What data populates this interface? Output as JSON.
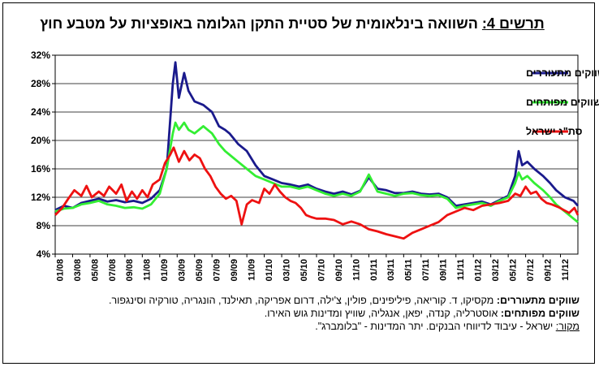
{
  "title": {
    "label": "תרשים 4:",
    "text": "השוואה בינלאומית של סטיית התקן הגלומה באופציות על מטבע חוץ"
  },
  "notes": {
    "emerging_label": "שווקים מתעוררים:",
    "emerging_text": "מקסיקו, ד. קוריאה, פיליפינים, פולין, צ'ילה, דרום אפריקה, תאילנד, הונגריה, טורקיה וסינגפור.",
    "developed_label": "שווקים מפותחים:",
    "developed_text": "אוסטרליה, קנדה, יפאן, אנגליה, שוויץ ומדינות גוש האירו.",
    "source_label": "מקור:",
    "source_text": "ישראל - עיבוד לדיווחי הבנקים. יתר המדינות - \"בלומברג\"."
  },
  "chart_data": {
    "type": "line",
    "x_tick_labels": [
      "01/08",
      "03/08",
      "05/08",
      "07/08",
      "09/08",
      "11/08",
      "01/09",
      "03/09",
      "05/09",
      "07/09",
      "09/09",
      "11/09",
      "01/10",
      "03/10",
      "05/10",
      "07/10",
      "09/10",
      "11/10",
      "01/11",
      "03/11",
      "05/11",
      "07/11",
      "09/11",
      "11/11",
      "01/12",
      "03/12",
      "05/12",
      "07/12",
      "09/12",
      "11/12"
    ],
    "y_tick_labels": [
      "4%",
      "8%",
      "12%",
      "16%",
      "20%",
      "24%",
      "28%",
      "32%"
    ],
    "ylim": [
      4,
      32
    ],
    "y_unit": "%",
    "x_range": [
      0,
      60
    ],
    "grid": "horizontal",
    "legend_position": "top-right",
    "series": [
      {
        "name": "ממוצע שווקים מתעוררים",
        "color": "#1a1a8c",
        "points": [
          [
            0,
            10.2
          ],
          [
            1,
            10.8
          ],
          [
            2,
            10.5
          ],
          [
            3,
            11.2
          ],
          [
            4,
            11.5
          ],
          [
            5,
            11.8
          ],
          [
            6,
            11.4
          ],
          [
            7,
            11.6
          ],
          [
            8,
            11.3
          ],
          [
            9,
            11.5
          ],
          [
            10,
            11.2
          ],
          [
            11,
            11.8
          ],
          [
            12,
            13.0
          ],
          [
            12.8,
            16
          ],
          [
            13.5,
            28
          ],
          [
            13.8,
            31
          ],
          [
            14.2,
            26
          ],
          [
            14.8,
            29.5
          ],
          [
            15.3,
            27
          ],
          [
            16,
            25.5
          ],
          [
            17,
            25
          ],
          [
            18,
            24
          ],
          [
            18.8,
            22
          ],
          [
            19.5,
            21.5
          ],
          [
            20,
            21
          ],
          [
            21,
            19.5
          ],
          [
            22,
            18.5
          ],
          [
            23,
            16.5
          ],
          [
            24,
            15
          ],
          [
            25,
            14.5
          ],
          [
            26,
            14
          ],
          [
            27,
            13.8
          ],
          [
            28,
            13.5
          ],
          [
            29,
            13.8
          ],
          [
            30,
            13.2
          ],
          [
            31,
            12.8
          ],
          [
            32,
            12.5
          ],
          [
            33,
            12.8
          ],
          [
            34,
            12.4
          ],
          [
            35,
            12.9
          ],
          [
            36,
            14.8
          ],
          [
            37,
            13.2
          ],
          [
            38,
            13.0
          ],
          [
            39,
            12.6
          ],
          [
            40,
            12.6
          ],
          [
            41,
            12.8
          ],
          [
            42,
            12.5
          ],
          [
            43,
            12.4
          ],
          [
            44,
            12.5
          ],
          [
            45,
            12.0
          ],
          [
            46,
            10.8
          ],
          [
            47,
            11.0
          ],
          [
            48,
            11.2
          ],
          [
            49,
            11.4
          ],
          [
            50,
            11.0
          ],
          [
            51,
            11.6
          ],
          [
            52,
            12.2
          ],
          [
            52.8,
            15
          ],
          [
            53.2,
            18.5
          ],
          [
            53.6,
            16.5
          ],
          [
            54.2,
            17
          ],
          [
            55,
            16
          ],
          [
            56,
            15
          ],
          [
            56.8,
            14
          ],
          [
            57.5,
            13
          ],
          [
            58.5,
            12
          ],
          [
            59.5,
            11.5
          ],
          [
            60,
            10.8
          ]
        ]
      },
      {
        "name": "ממוצע שווקים מפותחים",
        "color": "#33ee33",
        "points": [
          [
            0,
            10.0
          ],
          [
            1,
            10.4
          ],
          [
            2,
            10.5
          ],
          [
            3,
            11.0
          ],
          [
            4,
            11.2
          ],
          [
            5,
            11.5
          ],
          [
            6,
            11.0
          ],
          [
            7,
            10.8
          ],
          [
            8,
            10.5
          ],
          [
            9,
            10.6
          ],
          [
            10,
            10.4
          ],
          [
            11,
            11.0
          ],
          [
            12,
            12.5
          ],
          [
            12.8,
            16
          ],
          [
            13.5,
            21
          ],
          [
            13.8,
            22.5
          ],
          [
            14.2,
            21.5
          ],
          [
            14.8,
            22.5
          ],
          [
            15.3,
            21.5
          ],
          [
            16,
            21
          ],
          [
            17,
            22
          ],
          [
            18,
            21
          ],
          [
            18.8,
            19.5
          ],
          [
            19.5,
            18.5
          ],
          [
            20,
            18
          ],
          [
            21,
            17
          ],
          [
            22,
            16
          ],
          [
            23,
            15
          ],
          [
            24,
            14.5
          ],
          [
            25,
            14
          ],
          [
            26,
            13.5
          ],
          [
            27,
            13.5
          ],
          [
            28,
            13.2
          ],
          [
            29,
            13.5
          ],
          [
            30,
            13.0
          ],
          [
            31,
            12.5
          ],
          [
            32,
            12.2
          ],
          [
            33,
            12.5
          ],
          [
            34,
            12.2
          ],
          [
            35,
            12.8
          ],
          [
            36,
            15.2
          ],
          [
            37,
            12.8
          ],
          [
            38,
            12.5
          ],
          [
            39,
            12.2
          ],
          [
            40,
            12.5
          ],
          [
            41,
            12.6
          ],
          [
            42,
            12.3
          ],
          [
            43,
            12.2
          ],
          [
            44,
            12.3
          ],
          [
            45,
            11.8
          ],
          [
            46,
            10.5
          ],
          [
            47,
            10.8
          ],
          [
            48,
            11.0
          ],
          [
            49,
            11.2
          ],
          [
            50,
            10.8
          ],
          [
            51,
            11.5
          ],
          [
            52,
            12.0
          ],
          [
            52.8,
            14
          ],
          [
            53.2,
            15.5
          ],
          [
            53.6,
            14.5
          ],
          [
            54.2,
            15
          ],
          [
            55,
            14
          ],
          [
            56,
            13
          ],
          [
            56.8,
            12
          ],
          [
            57.5,
            11
          ],
          [
            58.5,
            10
          ],
          [
            59.5,
            9
          ],
          [
            60,
            8.5
          ]
        ]
      },
      {
        "name": "סת\"ג ישראל",
        "color": "#ee1111",
        "points": [
          [
            0,
            9.5
          ],
          [
            0.8,
            10.5
          ],
          [
            1.5,
            11.8
          ],
          [
            2.2,
            13
          ],
          [
            3,
            12.2
          ],
          [
            3.6,
            13.6
          ],
          [
            4.2,
            12
          ],
          [
            5,
            12.8
          ],
          [
            5.6,
            12.2
          ],
          [
            6.2,
            13.5
          ],
          [
            7,
            12.5
          ],
          [
            7.6,
            13.8
          ],
          [
            8.2,
            11.5
          ],
          [
            8.8,
            12.8
          ],
          [
            9.4,
            11.8
          ],
          [
            10,
            13
          ],
          [
            10.6,
            12
          ],
          [
            11.2,
            13.8
          ],
          [
            12,
            14.5
          ],
          [
            12.6,
            16.8
          ],
          [
            13.2,
            18
          ],
          [
            13.6,
            19
          ],
          [
            14.2,
            17
          ],
          [
            14.8,
            18.5
          ],
          [
            15.4,
            17.2
          ],
          [
            16,
            18
          ],
          [
            16.6,
            17.5
          ],
          [
            17.2,
            16
          ],
          [
            17.8,
            15
          ],
          [
            18.4,
            13.5
          ],
          [
            19,
            12.5
          ],
          [
            19.6,
            11.8
          ],
          [
            20.2,
            12.2
          ],
          [
            20.8,
            11.5
          ],
          [
            21.4,
            8.2
          ],
          [
            22,
            11
          ],
          [
            22.6,
            11.6
          ],
          [
            23.4,
            11.2
          ],
          [
            24,
            13.2
          ],
          [
            24.6,
            12.5
          ],
          [
            25.2,
            13.8
          ],
          [
            25.8,
            12.8
          ],
          [
            26.4,
            12
          ],
          [
            27,
            11.5
          ],
          [
            27.6,
            11.2
          ],
          [
            28.2,
            10.5
          ],
          [
            28.8,
            9.5
          ],
          [
            29.4,
            9.2
          ],
          [
            30,
            9.0
          ],
          [
            31,
            9.0
          ],
          [
            32,
            8.8
          ],
          [
            33,
            8.2
          ],
          [
            34,
            8.6
          ],
          [
            35,
            8.2
          ],
          [
            36,
            7.5
          ],
          [
            37,
            7.2
          ],
          [
            38,
            6.8
          ],
          [
            39,
            6.5
          ],
          [
            40,
            6.2
          ],
          [
            41,
            7.0
          ],
          [
            42,
            7.5
          ],
          [
            43,
            8.0
          ],
          [
            44,
            8.5
          ],
          [
            45,
            9.5
          ],
          [
            46,
            10.0
          ],
          [
            47,
            10.5
          ],
          [
            48,
            10.2
          ],
          [
            49,
            10.8
          ],
          [
            50,
            11.0
          ],
          [
            51,
            11.2
          ],
          [
            52,
            11.5
          ],
          [
            52.8,
            12.5
          ],
          [
            53.4,
            12.2
          ],
          [
            54,
            13.5
          ],
          [
            54.6,
            12.5
          ],
          [
            55.2,
            12.8
          ],
          [
            55.8,
            11.8
          ],
          [
            56.4,
            11.2
          ],
          [
            57,
            11.0
          ],
          [
            57.8,
            10.6
          ],
          [
            58.4,
            10.2
          ],
          [
            59,
            9.8
          ],
          [
            59.6,
            10.5
          ],
          [
            60,
            9.5
          ]
        ]
      }
    ]
  }
}
